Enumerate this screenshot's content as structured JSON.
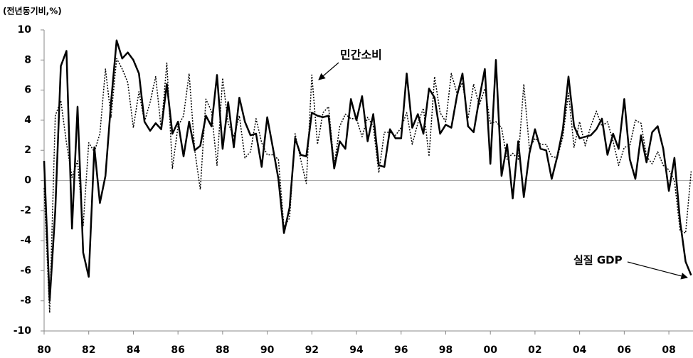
{
  "chart_data": {
    "type": "line",
    "y_axis_label": "(전년동기비,%)",
    "categories": [
      "80",
      null,
      null,
      null,
      null,
      null,
      null,
      null,
      "82",
      null,
      null,
      null,
      null,
      null,
      null,
      null,
      "84",
      null,
      null,
      null,
      null,
      null,
      null,
      null,
      "86",
      null,
      null,
      null,
      null,
      null,
      null,
      null,
      "88",
      null,
      null,
      null,
      null,
      null,
      null,
      null,
      "90",
      null,
      null,
      null,
      null,
      null,
      null,
      null,
      "92",
      null,
      null,
      null,
      null,
      null,
      null,
      null,
      "94",
      null,
      null,
      null,
      null,
      null,
      null,
      null,
      "96",
      null,
      null,
      null,
      null,
      null,
      null,
      null,
      "98",
      null,
      null,
      null,
      null,
      null,
      null,
      null,
      "00",
      null,
      null,
      null,
      null,
      null,
      null,
      null,
      "02",
      null,
      null,
      null,
      null,
      null,
      null,
      null,
      "04",
      null,
      null,
      null,
      null,
      null,
      null,
      null,
      "06",
      null,
      null,
      null,
      null,
      null,
      null,
      null,
      "08",
      null,
      null,
      null,
      null
    ],
    "series": [
      {
        "name": "민간소비",
        "color": "#000000",
        "style": "dotted",
        "values": [
          -0.5,
          -8.8,
          4.3,
          5.3,
          2.5,
          0.2,
          1.3,
          -3.0,
          2.5,
          1.9,
          3.1,
          7.4,
          4.2,
          8.1,
          7.4,
          6.5,
          3.5,
          5.9,
          3.9,
          5.2,
          6.9,
          3.4,
          7.8,
          0.8,
          3.6,
          4.3,
          7.1,
          2.0,
          -0.6,
          5.4,
          4.6,
          1.0,
          6.8,
          3.8,
          2.9,
          4.3,
          1.5,
          1.9,
          4.1,
          2.5,
          1.7,
          1.7,
          1.4,
          -3.1,
          -2.5,
          3.1,
          1.4,
          -0.2,
          7.0,
          2.4,
          4.5,
          4.9,
          1.0,
          3.6,
          4.4,
          4.1,
          4.1,
          2.9,
          4.2,
          3.6,
          0.5,
          3.2,
          3.2,
          3.0,
          3.5,
          4.5,
          2.4,
          3.8,
          4.8,
          1.6,
          6.9,
          4.5,
          3.9,
          7.1,
          5.8,
          6.5,
          4.1,
          6.4,
          5.0,
          6.1,
          3.8,
          3.9,
          3.5,
          1.4,
          1.8,
          1.4,
          6.4,
          2.1,
          2.8,
          2.4,
          2.4,
          1.6,
          1.5,
          2.9,
          5.8,
          2.2,
          3.9,
          2.3,
          3.6,
          4.6,
          3.6,
          3.9,
          2.6,
          1.0,
          2.2,
          2.3,
          4.0,
          3.8,
          1.6,
          1.1,
          1.9,
          1.0,
          0.7,
          0.0,
          -3.3,
          -3.5,
          0.6
        ]
      },
      {
        "name": "실질 GDP",
        "color": "#000000",
        "style": "solid",
        "values": [
          1.3,
          -8.0,
          -2.0,
          7.6,
          8.6,
          -3.2,
          4.9,
          -4.8,
          -6.4,
          2.2,
          -1.5,
          0.3,
          5.2,
          9.3,
          8.1,
          8.5,
          8.0,
          7.1,
          3.9,
          3.3,
          3.8,
          3.4,
          6.4,
          3.1,
          3.9,
          1.6,
          3.9,
          2.0,
          2.3,
          4.3,
          3.6,
          7.0,
          2.1,
          5.2,
          2.2,
          5.5,
          3.9,
          3.0,
          3.1,
          0.9,
          4.2,
          2.2,
          0.1,
          -3.5,
          -1.8,
          2.8,
          1.7,
          1.6,
          4.5,
          4.3,
          4.2,
          4.3,
          0.8,
          2.6,
          2.1,
          5.4,
          4.0,
          5.6,
          2.6,
          4.4,
          1.0,
          0.9,
          3.4,
          2.8,
          2.8,
          7.1,
          3.5,
          4.4,
          3.1,
          6.1,
          5.5,
          3.1,
          3.7,
          3.5,
          5.6,
          7.1,
          3.6,
          3.2,
          5.4,
          7.4,
          1.1,
          8.0,
          0.3,
          2.4,
          -1.2,
          2.6,
          -1.1,
          1.8,
          3.4,
          2.1,
          2.0,
          0.1,
          1.6,
          3.4,
          6.9,
          3.6,
          2.8,
          2.9,
          3.0,
          3.4,
          4.1,
          1.7,
          3.1,
          2.1,
          5.4,
          1.4,
          0.1,
          3.0,
          1.2,
          3.2,
          3.6,
          2.1,
          -0.7,
          1.5,
          -2.7,
          -5.4,
          -6.3
        ]
      }
    ],
    "ylim": [
      -10,
      10
    ],
    "yticks": [
      -10,
      -8,
      -6,
      -4,
      -2,
      0,
      2,
      4,
      6,
      8,
      10
    ],
    "grid": false
  }
}
